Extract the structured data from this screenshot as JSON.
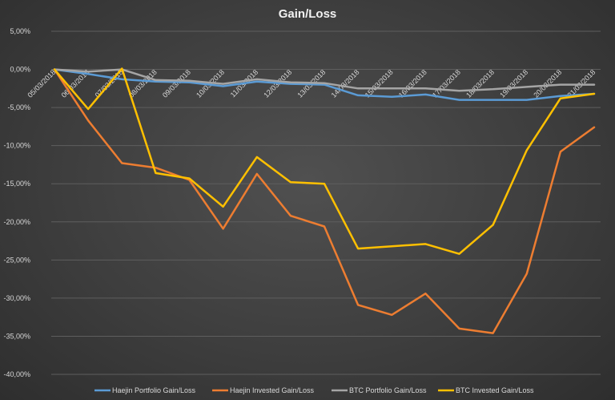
{
  "chart_data": {
    "type": "line",
    "title": "Gain/Loss",
    "xlabel": "",
    "ylabel": "",
    "ylim": [
      -40,
      5
    ],
    "grid": true,
    "legend_position": "bottom",
    "x": [
      "05/03/2018",
      "06/03/2018",
      "07/03/2018",
      "08/03/2018",
      "09/03/2018",
      "10/03/2018",
      "11/03/2018",
      "12/03/2018",
      "13/03/2018",
      "14/03/2018",
      "15/03/2018",
      "16/03/2018",
      "17/03/2018",
      "18/03/2018",
      "19/03/2018",
      "20/03/2018",
      "21/03/2018"
    ],
    "y_ticks": [
      "5,00%",
      "0,00%",
      "-5,00%",
      "-10,00%",
      "-15,00%",
      "-20,00%",
      "-25,00%",
      "-30,00%",
      "-35,00%",
      "-40,00%"
    ],
    "y_tick_values": [
      5,
      0,
      -5,
      -10,
      -15,
      -20,
      -25,
      -30,
      -35,
      -40
    ],
    "series": [
      {
        "name": "Haejin Portfolio Gain/Loss",
        "color": "#5b9bd5",
        "values": [
          0,
          -0.6,
          -1.3,
          -1.6,
          -1.7,
          -2.2,
          -1.6,
          -1.9,
          -2.0,
          -3.4,
          -3.6,
          -3.3,
          -4.0,
          -4.0,
          -4.0,
          -3.5,
          -3.2
        ]
      },
      {
        "name": "Haejin Invested Gain/Loss",
        "color": "#ed7d31",
        "values": [
          0,
          -6.7,
          -12.3,
          -12.9,
          -14.5,
          -20.9,
          -13.7,
          -19.2,
          -20.6,
          -30.9,
          -32.2,
          -29.4,
          -34.0,
          -34.6,
          -26.8,
          -10.8,
          -7.6
        ]
      },
      {
        "name": "BTC Portfolio Gain/Loss",
        "color": "#a5a5a5",
        "values": [
          0,
          -0.3,
          0,
          -1.4,
          -1.5,
          -1.9,
          -1.3,
          -1.7,
          -1.8,
          -2.5,
          -2.5,
          -2.5,
          -2.8,
          -2.6,
          -2.3,
          -2.0,
          -2.0
        ]
      },
      {
        "name": "BTC Invested Gain/Loss",
        "color": "#ffc000",
        "values": [
          0,
          -5.2,
          0.1,
          -13.6,
          -14.3,
          -18.0,
          -11.5,
          -14.8,
          -15.0,
          -23.5,
          -23.2,
          -22.9,
          -24.2,
          -20.4,
          -10.6,
          -3.8,
          -3.2
        ]
      }
    ]
  }
}
